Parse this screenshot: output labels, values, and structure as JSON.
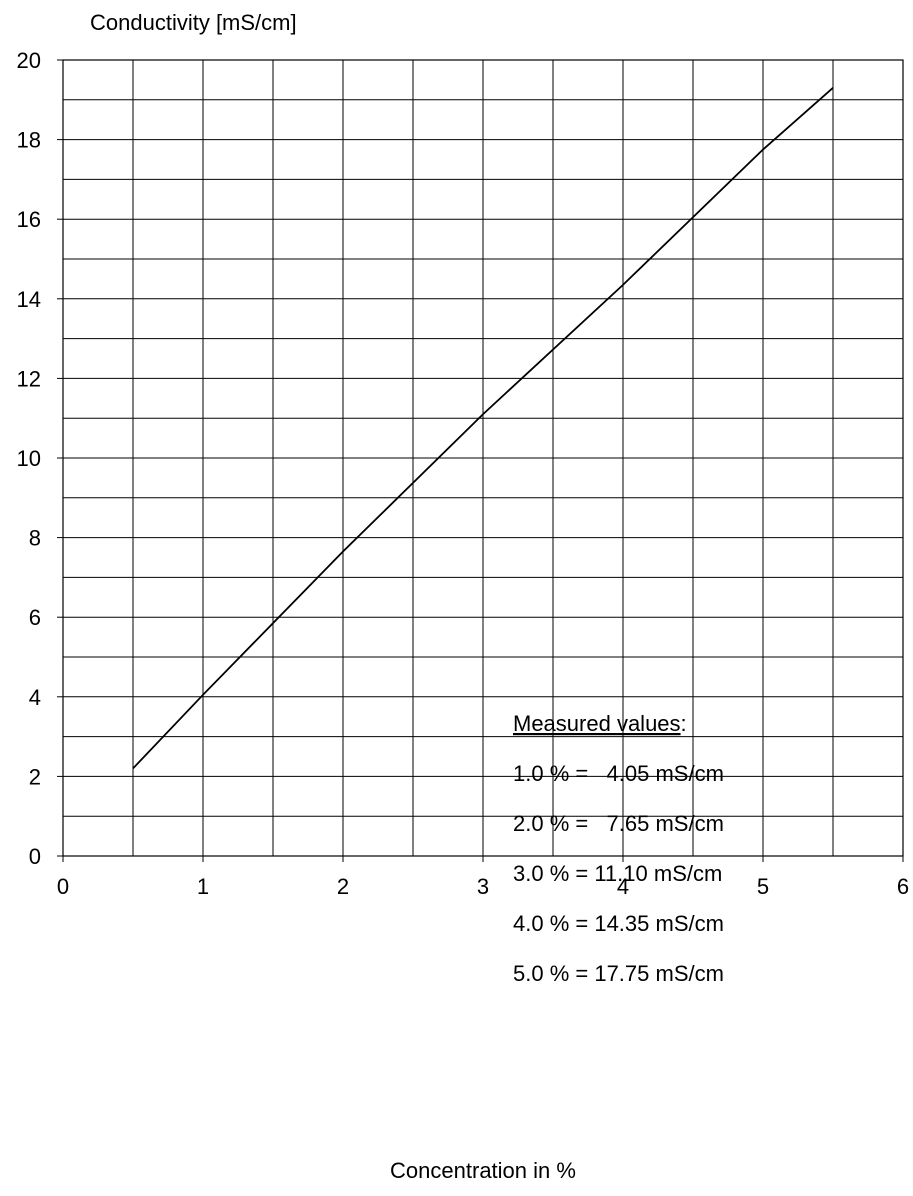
{
  "chart_data": {
    "type": "line",
    "title": "",
    "ylabel": "Conductivity [mS/cm]",
    "xlabel": "Concentration in %",
    "xlim": [
      0,
      6
    ],
    "ylim": [
      0,
      20
    ],
    "x_ticks": [
      0,
      1,
      2,
      3,
      4,
      5,
      6
    ],
    "y_ticks": [
      0,
      2,
      4,
      6,
      8,
      10,
      12,
      14,
      16,
      18,
      20
    ],
    "x_tick_labels": [
      "0",
      "1",
      "2",
      "3",
      "4",
      "5",
      "6"
    ],
    "y_tick_labels": [
      "0",
      "2",
      "4",
      "6",
      "8",
      "10",
      "12",
      "14",
      "16",
      "18",
      "20"
    ],
    "grid": true,
    "grid_x_step": 0.5,
    "grid_y_step": 1,
    "series": [
      {
        "x": [
          0.5,
          1.0,
          2.0,
          3.0,
          4.0,
          5.0,
          5.5
        ],
        "y": [
          2.2,
          4.05,
          7.65,
          11.1,
          14.35,
          17.75,
          19.3
        ],
        "color": "#000000"
      }
    ],
    "annotation": {
      "heading": "Measured values",
      "heading_suffix": ":",
      "lines": [
        "1.0 % =   4.05 mS/cm",
        "2.0 % =   7.65 mS/cm",
        "3.0 % = 11.10 mS/cm",
        "4.0 % = 14.35 mS/cm",
        "5.0 % = 17.75 mS/cm"
      ]
    }
  }
}
